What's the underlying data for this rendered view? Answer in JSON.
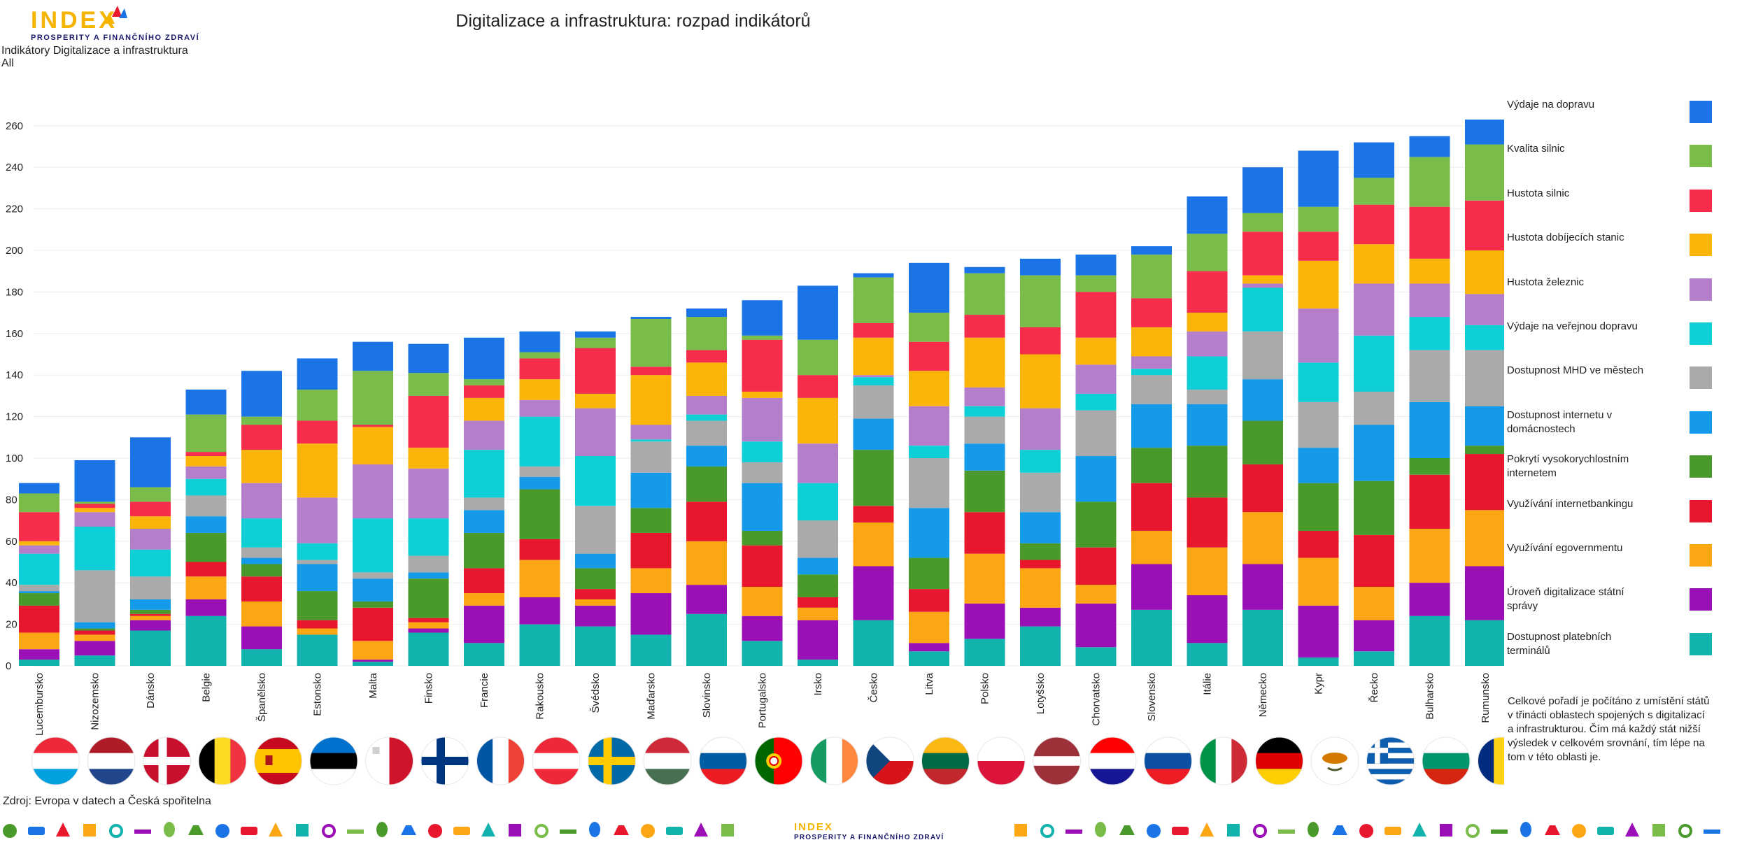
{
  "header": {
    "logo_text": "INDEX",
    "logo_subtitle": "PROSPERITY A FINANČNÍHO ZDRAVÍ",
    "subtitle_line1": "Indikátory Digitalizace a infrastruktura",
    "subtitle_line2": "All"
  },
  "footer": {
    "source": "Zdroj: Evropa v datech a Česká spořitelna",
    "logo_text": "INDEX",
    "logo_subtitle": "PROSPERITY A FINANČNÍHO ZDRAVÍ"
  },
  "note": "Celkové pořadí je počítáno z umístění států v třinácti oblastech spojených s digitalizací a infrastrukturou. Čím má každý stát nižší výsledek v celkovém srovnání, tím lépe na tom v této oblasti je.",
  "flag_icons": [
    "luxembourg-flag-icon",
    "netherlands-flag-icon",
    "denmark-flag-icon",
    "belgium-flag-icon",
    "spain-flag-icon",
    "estonia-flag-icon",
    "malta-flag-icon",
    "finland-flag-icon",
    "france-flag-icon",
    "austria-flag-icon",
    "sweden-flag-icon",
    "hungary-flag-icon",
    "slovenia-flag-icon",
    "portugal-flag-icon",
    "ireland-flag-icon",
    "czechia-flag-icon",
    "lithuania-flag-icon",
    "poland-flag-icon",
    "latvia-flag-icon",
    "croatia-flag-icon",
    "slovakia-flag-icon",
    "italy-flag-icon",
    "germany-flag-icon",
    "cyprus-flag-icon",
    "greece-flag-icon",
    "bulgaria-flag-icon",
    "romania-flag-icon"
  ],
  "chart_data": {
    "type": "bar",
    "stacked": true,
    "title": "Digitalizace a infrastruktura: rozpad indikátorů",
    "xlabel": "",
    "ylabel": "",
    "ylim": [
      0,
      270
    ],
    "yticks": [
      0,
      20,
      40,
      60,
      80,
      100,
      120,
      140,
      160,
      180,
      200,
      220,
      240,
      260
    ],
    "grid": true,
    "legend_position": "right",
    "categories": [
      "Lucembursko",
      "Nizozemsko",
      "Dánsko",
      "Belgie",
      "Španělsko",
      "Estonsko",
      "Malta",
      "Finsko",
      "Francie",
      "Rakousko",
      "Švédsko",
      "Maďarsko",
      "Slovinsko",
      "Portugalsko",
      "Irsko",
      "Česko",
      "Litva",
      "Polsko",
      "Lotyšsko",
      "Chorvatsko",
      "Slovensko",
      "Itálie",
      "Německo",
      "Kypr",
      "Řecko",
      "Bulharsko",
      "Rumunsko"
    ],
    "series": [
      {
        "name": "Dostupnost platebních terminálů",
        "color": "#13b3ad",
        "values": [
          3,
          5,
          17,
          24,
          8,
          15,
          2,
          16,
          11,
          20,
          19,
          15,
          25,
          12,
          3,
          22,
          7,
          13,
          19,
          9,
          27,
          11,
          27,
          4,
          7,
          24,
          22
        ]
      },
      {
        "name": "Úroveň digitalizace státní správy",
        "color": "#9b0fb6",
        "values": [
          5,
          7,
          5,
          8,
          11,
          0,
          1,
          2,
          18,
          13,
          10,
          20,
          14,
          12,
          19,
          26,
          4,
          17,
          9,
          21,
          22,
          23,
          22,
          25,
          15,
          16,
          26
        ]
      },
      {
        "name": "Využívání egovernmentu",
        "color": "#fba612",
        "values": [
          8,
          3,
          2,
          11,
          12,
          3,
          9,
          3,
          6,
          18,
          3,
          12,
          21,
          14,
          6,
          21,
          15,
          24,
          19,
          9,
          16,
          23,
          25,
          23,
          16,
          26,
          27
        ]
      },
      {
        "name": "Využívání internetbankingu",
        "color": "#e8172e",
        "values": [
          13,
          2,
          1,
          7,
          12,
          4,
          16,
          2,
          12,
          10,
          5,
          17,
          19,
          20,
          5,
          8,
          11,
          20,
          4,
          18,
          23,
          24,
          23,
          13,
          25,
          26,
          27
        ]
      },
      {
        "name": "Pokrytí vysokorychlostním internetem",
        "color": "#4a9a2b",
        "values": [
          6,
          1,
          2,
          14,
          6,
          14,
          3,
          19,
          17,
          24,
          10,
          12,
          17,
          7,
          11,
          27,
          15,
          20,
          8,
          22,
          17,
          25,
          21,
          23,
          26,
          8,
          4
        ]
      },
      {
        "name": "Dostupnost internetu v domácnostech",
        "color": "#149ae8",
        "values": [
          1,
          3,
          5,
          8,
          3,
          13,
          11,
          3,
          11,
          6,
          7,
          17,
          10,
          23,
          8,
          15,
          24,
          13,
          15,
          22,
          21,
          20,
          20,
          17,
          27,
          27,
          19
        ]
      },
      {
        "name": "Dostupnost MHD ve městech",
        "color": "#aaaaaa",
        "values": [
          3,
          25,
          11,
          10,
          5,
          2,
          3,
          8,
          6,
          5,
          23,
          15,
          12,
          10,
          18,
          16,
          24,
          13,
          19,
          22,
          14,
          7,
          23,
          22,
          16,
          25,
          27
        ]
      },
      {
        "name": "Výdaje na veřejnou dopravu",
        "color": "#0ecfd6",
        "values": [
          15,
          21,
          13,
          8,
          14,
          8,
          26,
          18,
          23,
          24,
          24,
          1,
          3,
          10,
          18,
          4,
          6,
          5,
          11,
          8,
          3,
          16,
          21,
          19,
          27,
          16,
          12
        ]
      },
      {
        "name": "Hustota železnic",
        "color": "#b57ecb",
        "values": [
          4,
          7,
          10,
          6,
          17,
          22,
          26,
          24,
          14,
          8,
          23,
          7,
          9,
          21,
          19,
          1,
          19,
          9,
          20,
          14,
          6,
          12,
          2,
          26,
          25,
          16,
          15
        ]
      },
      {
        "name": "Hustota dobíjecích stanic",
        "color": "#fbb40a",
        "values": [
          2,
          2,
          6,
          5,
          16,
          26,
          18,
          10,
          11,
          10,
          7,
          24,
          16,
          3,
          22,
          18,
          17,
          24,
          26,
          13,
          14,
          9,
          4,
          23,
          19,
          12,
          21
        ]
      },
      {
        "name": "Hustota silnic",
        "color": "#f52d4a",
        "values": [
          14,
          2,
          7,
          2,
          12,
          11,
          1,
          25,
          6,
          10,
          22,
          4,
          6,
          25,
          11,
          7,
          14,
          11,
          13,
          22,
          14,
          20,
          21,
          14,
          19,
          25,
          24
        ]
      },
      {
        "name": "Kvalita silnic",
        "color": "#79bc49",
        "values": [
          9,
          1,
          7,
          18,
          4,
          15,
          26,
          11,
          3,
          3,
          5,
          23,
          16,
          2,
          17,
          22,
          14,
          20,
          25,
          8,
          21,
          18,
          9,
          12,
          13,
          24,
          27
        ]
      },
      {
        "name": "Výdaje na dopravu",
        "color": "#1a74e6",
        "values": [
          5,
          20,
          24,
          12,
          22,
          15,
          14,
          14,
          20,
          10,
          3,
          1,
          4,
          17,
          26,
          2,
          24,
          3,
          8,
          10,
          4,
          18,
          22,
          27,
          17,
          10,
          12
        ]
      }
    ]
  }
}
